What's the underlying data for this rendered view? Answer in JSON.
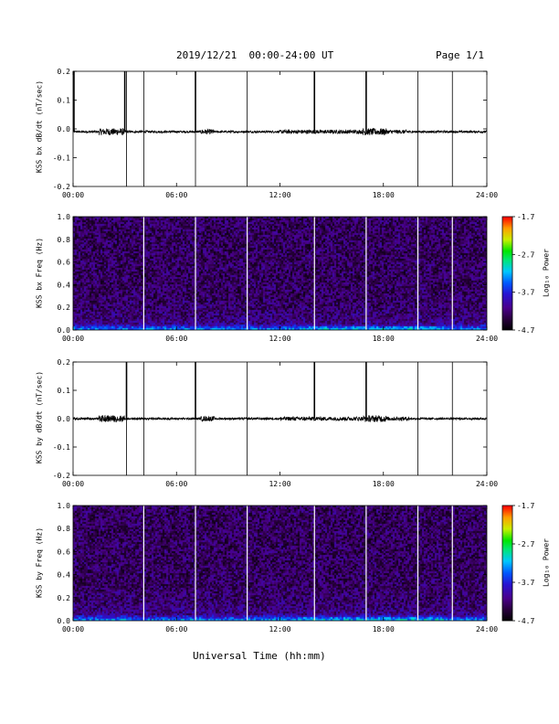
{
  "header": {
    "title": "2019/12/21  00:00-24:00 UT",
    "page": "Page 1/1"
  },
  "xlabel": "Universal Time (hh:mm)",
  "colorbar_label": "Log₁₀ Power",
  "chart_data": [
    {
      "type": "line",
      "ylabel": "KSS bx dB/dt (nT/sec)",
      "xlim": [
        0,
        24
      ],
      "ylim": [
        -0.2,
        0.2
      ],
      "xticks": [
        0,
        6,
        12,
        18,
        24
      ],
      "xtick_labels": [
        "00:00",
        "06:00",
        "12:00",
        "18:00",
        "24:00"
      ],
      "yticks": [
        -0.2,
        -0.1,
        0.0,
        0.1,
        0.2
      ],
      "ytick_labels": [
        "-0.2",
        "-0.1",
        "0.0",
        "0.1",
        "0.2"
      ],
      "baseline": -0.01,
      "spikes_up": [
        0.05,
        3.0,
        7.1,
        14.0,
        17.0
      ],
      "spikes_full": [
        3.1,
        4.1,
        7.1,
        10.1,
        20.0,
        22.0
      ]
    },
    {
      "type": "heatmap",
      "ylabel": "KSS bx Freq (Hz)",
      "xlim": [
        0,
        24
      ],
      "ylim": [
        0.0,
        1.0
      ],
      "xticks": [
        0,
        6,
        12,
        18,
        24
      ],
      "xtick_labels": [
        "00:00",
        "06:00",
        "12:00",
        "18:00",
        "24:00"
      ],
      "yticks": [
        0.0,
        0.2,
        0.4,
        0.6,
        0.8,
        1.0
      ],
      "ytick_labels": [
        "0.0",
        "0.2",
        "0.4",
        "0.6",
        "0.8",
        "1.0"
      ],
      "colorbar_range": [
        -4.7,
        -1.7
      ],
      "colorbar_ticks": [
        "-1.7",
        "-2.7",
        "-3.7",
        "-4.7"
      ],
      "gaps": [
        4.1,
        7.1,
        10.1,
        14.0,
        17.0,
        20.0,
        22.0
      ]
    },
    {
      "type": "line",
      "ylabel": "KSS by dB/dt (nT/sec)",
      "xlim": [
        0,
        24
      ],
      "ylim": [
        -0.2,
        0.2
      ],
      "xticks": [
        0,
        6,
        12,
        18,
        24
      ],
      "xtick_labels": [
        "00:00",
        "06:00",
        "12:00",
        "18:00",
        "24:00"
      ],
      "yticks": [
        -0.2,
        -0.1,
        0.0,
        0.1,
        0.2
      ],
      "ytick_labels": [
        "-0.2",
        "-0.1",
        "0.0",
        "0.1",
        "0.2"
      ],
      "baseline": 0.0,
      "spikes_up": [
        3.1,
        7.1,
        14.0,
        17.0
      ],
      "spikes_full": [
        3.1,
        4.1,
        7.1,
        10.1,
        20.0,
        22.0
      ]
    },
    {
      "type": "heatmap",
      "ylabel": "KSS by Freq (Hz)",
      "xlim": [
        0,
        24
      ],
      "ylim": [
        0.0,
        1.0
      ],
      "xticks": [
        0,
        6,
        12,
        18,
        24
      ],
      "xtick_labels": [
        "00:00",
        "06:00",
        "12:00",
        "18:00",
        "24:00"
      ],
      "yticks": [
        0.0,
        0.2,
        0.4,
        0.6,
        0.8,
        1.0
      ],
      "ytick_labels": [
        "0.0",
        "0.2",
        "0.4",
        "0.6",
        "0.8",
        "1.0"
      ],
      "colorbar_range": [
        -4.7,
        -1.7
      ],
      "colorbar_ticks": [
        "-1.7",
        "-2.7",
        "-3.7",
        "-4.7"
      ],
      "gaps": [
        4.1,
        7.1,
        10.1,
        14.0,
        17.0,
        20.0,
        22.0
      ]
    }
  ]
}
